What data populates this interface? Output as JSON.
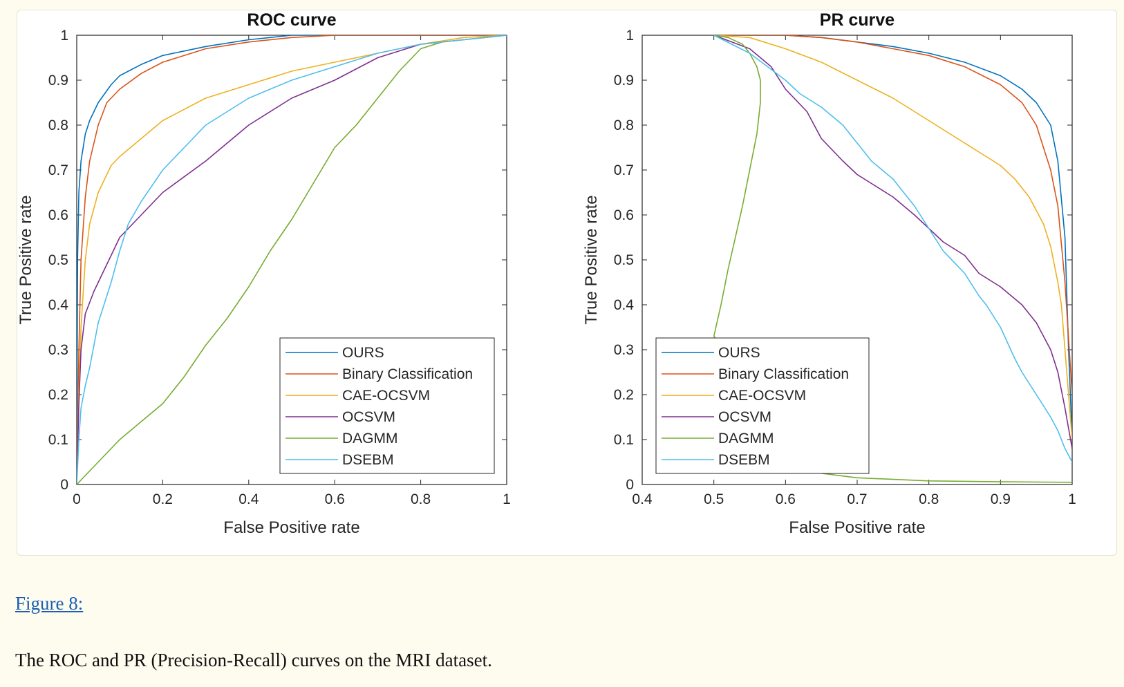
{
  "figure": {
    "link_text": "Figure 8:",
    "caption": "The ROC and PR (Precision-Recall) curves on the MRI dataset."
  },
  "chart_data": [
    {
      "type": "line",
      "title": "ROC curve",
      "xlabel": "False Positive rate",
      "ylabel": "True Positive rate",
      "xlim": [
        0,
        1
      ],
      "ylim": [
        0,
        1
      ],
      "xticks": [
        0,
        0.2,
        0.4,
        0.6,
        0.8,
        1
      ],
      "xtick_labels": [
        "0",
        "0.2",
        "0.4",
        "0.6",
        "0.8",
        "1"
      ],
      "yticks": [
        0,
        0.1,
        0.2,
        0.3,
        0.4,
        0.5,
        0.6,
        0.7,
        0.8,
        0.9,
        1
      ],
      "ytick_labels": [
        "0",
        "0.1",
        "0.2",
        "0.3",
        "0.4",
        "0.5",
        "0.6",
        "0.7",
        "0.8",
        "0.9",
        "1"
      ],
      "grid": false,
      "legend": "bottom-right",
      "series": [
        {
          "name": "OURS",
          "color": "#0072BD",
          "x": [
            0,
            0.002,
            0.005,
            0.01,
            0.02,
            0.03,
            0.05,
            0.08,
            0.1,
            0.15,
            0.2,
            0.3,
            0.4,
            0.5,
            0.6,
            0.8,
            1
          ],
          "y": [
            0,
            0.5,
            0.65,
            0.72,
            0.78,
            0.81,
            0.85,
            0.89,
            0.91,
            0.935,
            0.955,
            0.975,
            0.99,
            1,
            1,
            1,
            1
          ]
        },
        {
          "name": "Binary Classification",
          "color": "#D95319",
          "x": [
            0,
            0.005,
            0.01,
            0.02,
            0.03,
            0.05,
            0.07,
            0.1,
            0.15,
            0.2,
            0.3,
            0.4,
            0.5,
            0.6,
            0.8,
            1
          ],
          "y": [
            0,
            0.3,
            0.5,
            0.64,
            0.72,
            0.8,
            0.85,
            0.88,
            0.915,
            0.94,
            0.97,
            0.985,
            0.995,
            1,
            1,
            1
          ]
        },
        {
          "name": "CAE-OCSVM",
          "color": "#EDB120",
          "x": [
            0,
            0.005,
            0.01,
            0.02,
            0.03,
            0.05,
            0.08,
            0.1,
            0.15,
            0.2,
            0.3,
            0.4,
            0.5,
            0.6,
            0.7,
            0.8,
            0.9,
            1
          ],
          "y": [
            0,
            0.2,
            0.35,
            0.5,
            0.58,
            0.65,
            0.71,
            0.73,
            0.77,
            0.81,
            0.86,
            0.89,
            0.92,
            0.94,
            0.96,
            0.98,
            0.995,
            1
          ]
        },
        {
          "name": "OCSVM",
          "color": "#7E2F8E",
          "x": [
            0,
            0.005,
            0.01,
            0.02,
            0.04,
            0.06,
            0.08,
            0.1,
            0.15,
            0.2,
            0.25,
            0.3,
            0.35,
            0.4,
            0.5,
            0.6,
            0.7,
            0.8,
            0.9,
            1
          ],
          "y": [
            0,
            0.18,
            0.3,
            0.38,
            0.43,
            0.47,
            0.51,
            0.55,
            0.6,
            0.65,
            0.685,
            0.72,
            0.76,
            0.8,
            0.86,
            0.9,
            0.95,
            0.98,
            0.99,
            1
          ]
        },
        {
          "name": "DAGMM",
          "color": "#77AC30",
          "x": [
            0,
            0.02,
            0.05,
            0.1,
            0.15,
            0.2,
            0.25,
            0.3,
            0.35,
            0.4,
            0.45,
            0.5,
            0.55,
            0.6,
            0.65,
            0.7,
            0.75,
            0.8,
            0.85,
            0.9,
            0.95,
            1
          ],
          "y": [
            0,
            0.02,
            0.05,
            0.1,
            0.14,
            0.18,
            0.24,
            0.31,
            0.37,
            0.44,
            0.52,
            0.59,
            0.67,
            0.75,
            0.8,
            0.86,
            0.92,
            0.97,
            0.985,
            0.99,
            0.995,
            1
          ]
        },
        {
          "name": "DSEBM",
          "color": "#4DBEEE",
          "x": [
            0,
            0.005,
            0.01,
            0.02,
            0.03,
            0.05,
            0.08,
            0.1,
            0.12,
            0.15,
            0.2,
            0.25,
            0.3,
            0.35,
            0.4,
            0.5,
            0.6,
            0.7,
            0.8,
            0.9,
            1
          ],
          "y": [
            0,
            0.1,
            0.17,
            0.22,
            0.26,
            0.36,
            0.45,
            0.52,
            0.58,
            0.63,
            0.7,
            0.75,
            0.8,
            0.83,
            0.86,
            0.9,
            0.93,
            0.96,
            0.98,
            0.99,
            1
          ]
        }
      ]
    },
    {
      "type": "line",
      "title": "PR curve",
      "xlabel": "False Positive rate",
      "ylabel": "True Positive rate",
      "xlim": [
        0.4,
        1
      ],
      "ylim": [
        0,
        1
      ],
      "xticks": [
        0.4,
        0.5,
        0.6,
        0.7,
        0.8,
        0.9,
        1
      ],
      "xtick_labels": [
        "0.4",
        "0.5",
        "0.6",
        "0.7",
        "0.8",
        "0.9",
        "1"
      ],
      "yticks": [
        0,
        0.1,
        0.2,
        0.3,
        0.4,
        0.5,
        0.6,
        0.7,
        0.8,
        0.9,
        1
      ],
      "ytick_labels": [
        "0",
        "0.1",
        "0.2",
        "0.3",
        "0.4",
        "0.5",
        "0.6",
        "0.7",
        "0.8",
        "0.9",
        "1"
      ],
      "grid": false,
      "legend": "bottom-left",
      "series": [
        {
          "name": "OURS",
          "color": "#0072BD",
          "x": [
            0.5,
            0.55,
            0.6,
            0.65,
            0.7,
            0.75,
            0.8,
            0.85,
            0.9,
            0.93,
            0.95,
            0.97,
            0.98,
            0.99,
            0.995,
            1
          ],
          "y": [
            1,
            1,
            1,
            0.995,
            0.985,
            0.975,
            0.96,
            0.94,
            0.91,
            0.88,
            0.85,
            0.8,
            0.72,
            0.55,
            0.3,
            0.1
          ]
        },
        {
          "name": "Binary Classification",
          "color": "#D95319",
          "x": [
            0.5,
            0.55,
            0.6,
            0.65,
            0.7,
            0.75,
            0.8,
            0.85,
            0.9,
            0.93,
            0.95,
            0.96,
            0.97,
            0.98,
            0.99,
            1
          ],
          "y": [
            1,
            1,
            1,
            0.995,
            0.985,
            0.97,
            0.955,
            0.93,
            0.89,
            0.85,
            0.8,
            0.75,
            0.7,
            0.62,
            0.45,
            0.2
          ]
        },
        {
          "name": "CAE-OCSVM",
          "color": "#EDB120",
          "x": [
            0.5,
            0.55,
            0.6,
            0.65,
            0.7,
            0.75,
            0.8,
            0.85,
            0.88,
            0.9,
            0.92,
            0.94,
            0.96,
            0.97,
            0.98,
            0.985,
            0.99,
            1
          ],
          "y": [
            1,
            0.995,
            0.97,
            0.94,
            0.9,
            0.86,
            0.81,
            0.76,
            0.73,
            0.71,
            0.68,
            0.64,
            0.58,
            0.53,
            0.45,
            0.4,
            0.3,
            0.1
          ]
        },
        {
          "name": "OCSVM",
          "color": "#7E2F8E",
          "x": [
            0.5,
            0.55,
            0.58,
            0.6,
            0.63,
            0.65,
            0.68,
            0.7,
            0.72,
            0.75,
            0.78,
            0.8,
            0.82,
            0.85,
            0.87,
            0.9,
            0.93,
            0.95,
            0.97,
            0.98,
            0.99,
            1
          ],
          "y": [
            1,
            0.97,
            0.93,
            0.88,
            0.83,
            0.77,
            0.72,
            0.69,
            0.67,
            0.64,
            0.6,
            0.57,
            0.54,
            0.51,
            0.47,
            0.44,
            0.4,
            0.36,
            0.3,
            0.25,
            0.17,
            0.08
          ]
        },
        {
          "name": "DAGMM",
          "color": "#77AC30",
          "x": [
            0.5,
            0.52,
            0.54,
            0.55,
            0.56,
            0.565,
            0.565,
            0.56,
            0.55,
            0.54,
            0.53,
            0.52,
            0.51,
            0.5,
            0.65,
            0.7,
            0.8,
            0.9,
            1
          ],
          "y": [
            1,
            0.995,
            0.98,
            0.96,
            0.93,
            0.9,
            0.85,
            0.78,
            0.7,
            0.62,
            0.55,
            0.48,
            0.4,
            0.33,
            0.025,
            0.015,
            0.008,
            0.006,
            0.005
          ]
        },
        {
          "name": "DSEBM",
          "color": "#4DBEEE",
          "x": [
            0.5,
            0.55,
            0.6,
            0.62,
            0.65,
            0.68,
            0.7,
            0.72,
            0.75,
            0.78,
            0.8,
            0.82,
            0.85,
            0.87,
            0.88,
            0.9,
            0.92,
            0.93,
            0.95,
            0.97,
            0.98,
            0.99,
            1
          ],
          "y": [
            1,
            0.96,
            0.9,
            0.87,
            0.84,
            0.8,
            0.76,
            0.72,
            0.68,
            0.62,
            0.57,
            0.52,
            0.47,
            0.42,
            0.4,
            0.35,
            0.28,
            0.25,
            0.2,
            0.15,
            0.12,
            0.08,
            0.05
          ]
        }
      ]
    }
  ]
}
